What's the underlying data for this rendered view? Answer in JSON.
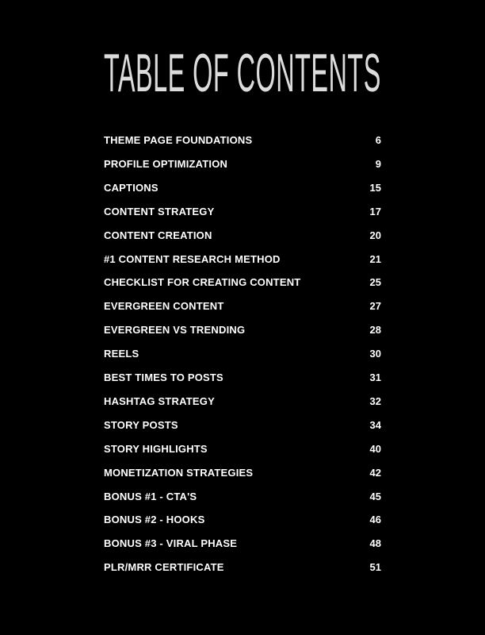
{
  "title": "TABLE OF CONTENTS",
  "entries": [
    {
      "label": "THEME PAGE FOUNDATIONS",
      "page": "6"
    },
    {
      "label": "PROFILE OPTIMIZATION",
      "page": "9"
    },
    {
      "label": "CAPTIONS",
      "page": "15"
    },
    {
      "label": "CONTENT STRATEGY",
      "page": "17"
    },
    {
      "label": "CONTENT CREATION",
      "page": "20"
    },
    {
      "label": "#1 CONTENT RESEARCH METHOD",
      "page": "21"
    },
    {
      "label": "CHECKLIST FOR CREATING CONTENT",
      "page": "25"
    },
    {
      "label": "EVERGREEN CONTENT",
      "page": "27"
    },
    {
      "label": "EVERGREEN VS TRENDING",
      "page": "28"
    },
    {
      "label": "REELS",
      "page": "30"
    },
    {
      "label": "BEST TIMES TO POSTS",
      "page": "31"
    },
    {
      "label": "HASHTAG STRATEGY",
      "page": "32"
    },
    {
      "label": "STORY POSTS",
      "page": "34"
    },
    {
      "label": "STORY HIGHLIGHTS",
      "page": "40"
    },
    {
      "label": "MONETIZATION STRATEGIES",
      "page": "42"
    },
    {
      "label": "BONUS #1 - CTA'S",
      "page": "45"
    },
    {
      "label": "BONUS #2 - HOOKS",
      "page": "46"
    },
    {
      "label": "BONUS #3 - VIRAL PHASE",
      "page": "48"
    },
    {
      "label": "PLR/MRR CERTIFICATE",
      "page": "51"
    }
  ]
}
